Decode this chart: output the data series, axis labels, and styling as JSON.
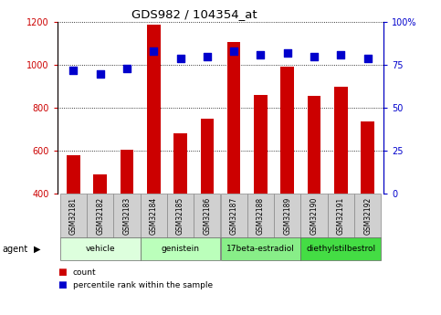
{
  "title": "GDS982 / 104354_at",
  "samples": [
    "GSM32181",
    "GSM32182",
    "GSM32183",
    "GSM32184",
    "GSM32185",
    "GSM32186",
    "GSM32187",
    "GSM32188",
    "GSM32189",
    "GSM32190",
    "GSM32191",
    "GSM32192"
  ],
  "count_values": [
    580,
    490,
    605,
    1190,
    680,
    750,
    1105,
    862,
    992,
    855,
    900,
    735
  ],
  "percentile_values": [
    72,
    70,
    73,
    83,
    79,
    80,
    83,
    81,
    82,
    80,
    81,
    79
  ],
  "bar_color": "#cc0000",
  "dot_color": "#0000cc",
  "ylim_left": [
    400,
    1200
  ],
  "ylim_right": [
    0,
    100
  ],
  "yticks_left": [
    400,
    600,
    800,
    1000,
    1200
  ],
  "yticks_right": [
    0,
    25,
    50,
    75,
    100
  ],
  "ytick_labels_right": [
    "0",
    "25",
    "50",
    "75",
    "100%"
  ],
  "groups": [
    {
      "label": "vehicle",
      "start": 0,
      "end": 3,
      "color": "#ddffdd"
    },
    {
      "label": "genistein",
      "start": 3,
      "end": 6,
      "color": "#bbffbb"
    },
    {
      "label": "17beta-estradiol",
      "start": 6,
      "end": 9,
      "color": "#88ee88"
    },
    {
      "label": "diethylstilbestrol",
      "start": 9,
      "end": 12,
      "color": "#44dd44"
    }
  ],
  "legend_items": [
    {
      "label": "count",
      "color": "#cc0000"
    },
    {
      "label": "percentile rank within the sample",
      "color": "#0000cc"
    }
  ],
  "agent_label": "agent",
  "bar_width": 0.5,
  "dot_size": 30,
  "sample_box_color": "#d0d0d0",
  "sample_box_edge": "#888888"
}
